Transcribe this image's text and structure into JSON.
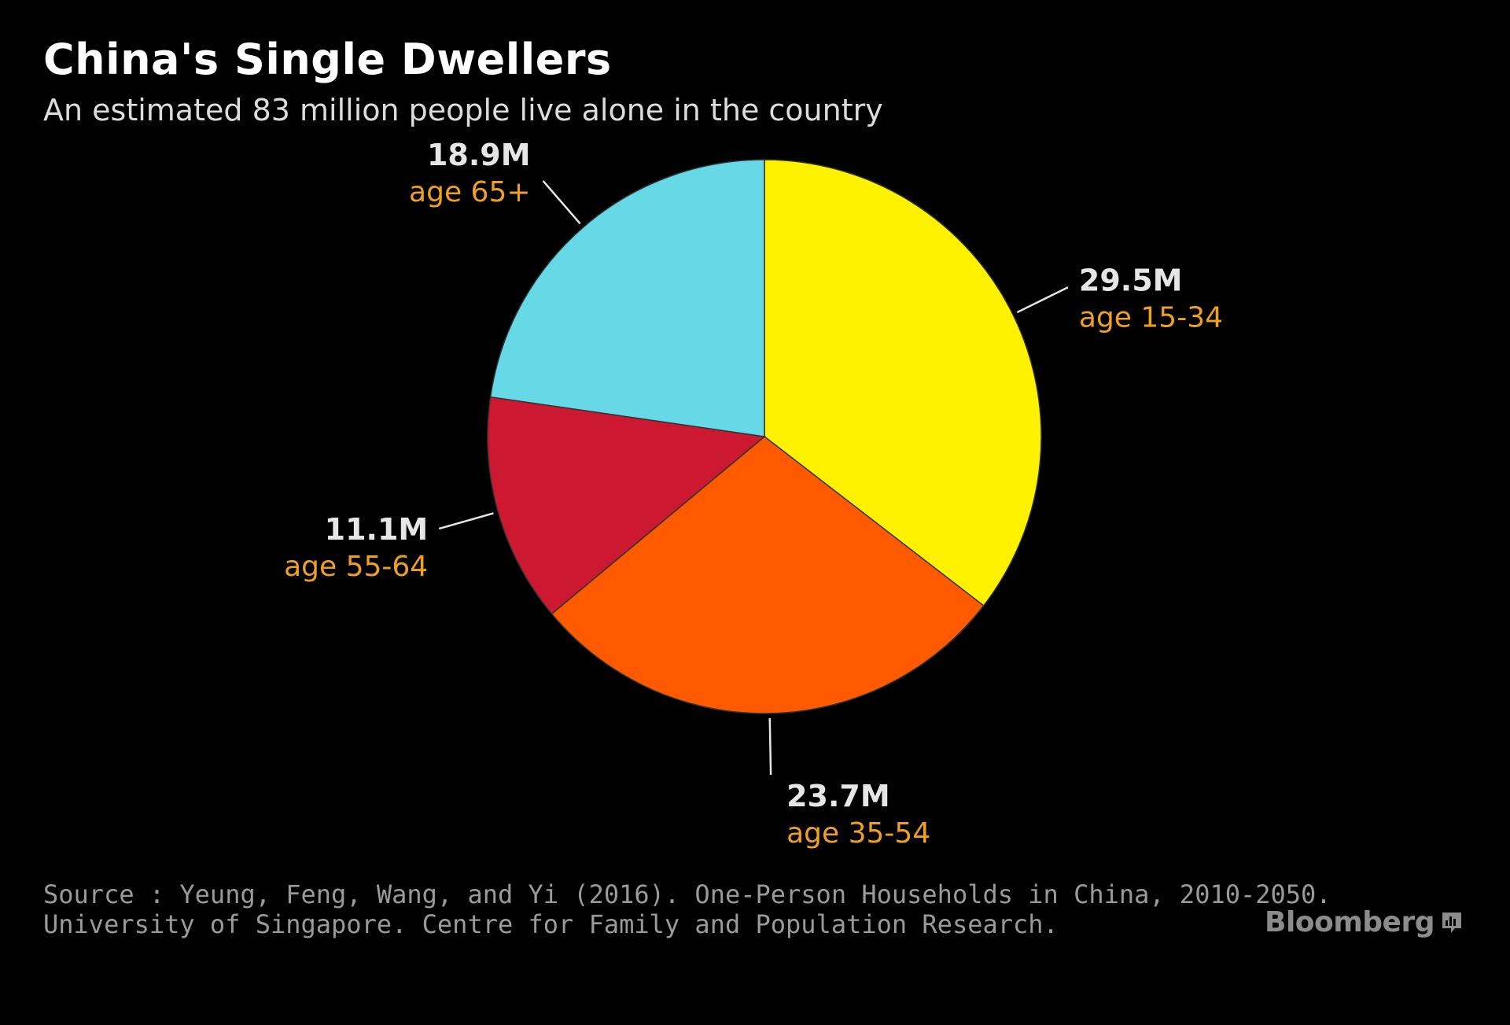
{
  "header": {
    "title": "China's Single Dwellers",
    "subtitle": "An estimated 83 million people live alone in the country"
  },
  "chart_data": {
    "type": "pie",
    "title": "China's Single Dwellers",
    "subtitle": "An estimated 83 million people live alone in the country",
    "unit": "million people",
    "slices": [
      {
        "label": "age 15-34",
        "value": 29.5,
        "value_label": "29.5M",
        "color": "#fff200"
      },
      {
        "label": "age 35-54",
        "value": 23.7,
        "value_label": "23.7M",
        "color": "#ff5a00"
      },
      {
        "label": "age 55-64",
        "value": 11.1,
        "value_label": "11.1M",
        "color": "#cc1831"
      },
      {
        "label": "age 65+",
        "value": 18.9,
        "value_label": "18.9M",
        "color": "#66d8e6"
      }
    ],
    "start": "12 o'clock",
    "direction": "clockwise",
    "value_label_color": "#e6e6e6",
    "category_label_color": "#f0a020"
  },
  "footer": {
    "source_line1": "Source : Yeung, Feng, Wang, and Yi (2016). One-Person Households in China, 2010-2050.",
    "source_line2": "University of Singapore. Centre for Family and Population Research.",
    "brand": "Bloomberg",
    "brand_icon": "bloomberg-chart-icon"
  }
}
